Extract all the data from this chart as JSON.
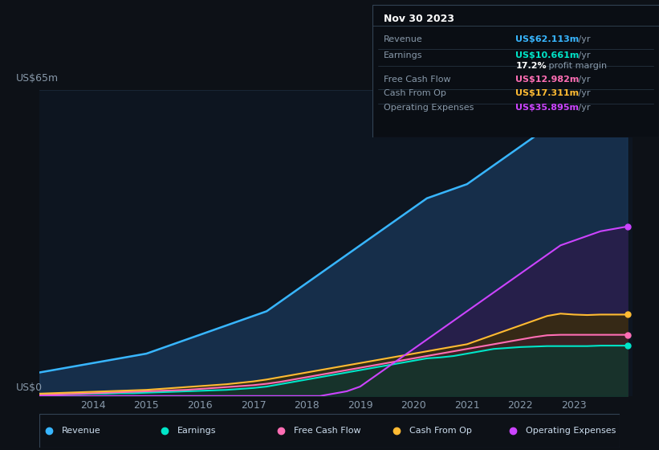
{
  "background_color": "#0d1117",
  "chart_bg_color": "#0d1520",
  "title_label": "US$65m",
  "zero_label": "US$0",
  "x_ticks": [
    "2014",
    "2015",
    "2016",
    "2017",
    "2018",
    "2019",
    "2020",
    "2021",
    "2022",
    "2023"
  ],
  "ylim": [
    0,
    65
  ],
  "grid_color": "#1e2d3d",
  "info_box": {
    "title": "Nov 30 2023",
    "rows": [
      {
        "label": "Revenue",
        "value": "US$62.113m",
        "suffix": " /yr",
        "color": "#38b6ff"
      },
      {
        "label": "Earnings",
        "value": "US$10.661m",
        "suffix": " /yr",
        "color": "#00e5c8"
      },
      {
        "label": "",
        "value": "17.2%",
        "suffix": " profit margin",
        "color": "#ffffff"
      },
      {
        "label": "Free Cash Flow",
        "value": "US$12.982m",
        "suffix": " /yr",
        "color": "#ff6eb4"
      },
      {
        "label": "Cash From Op",
        "value": "US$17.311m",
        "suffix": " /yr",
        "color": "#ffbb33"
      },
      {
        "label": "Operating Expenses",
        "value": "US$35.895m",
        "suffix": " /yr",
        "color": "#cc44ff"
      }
    ]
  },
  "legend": [
    {
      "label": "Revenue",
      "color": "#38b6ff"
    },
    {
      "label": "Earnings",
      "color": "#00e5c8"
    },
    {
      "label": "Free Cash Flow",
      "color": "#ff6eb4"
    },
    {
      "label": "Cash From Op",
      "color": "#ffbb33"
    },
    {
      "label": "Operating Expenses",
      "color": "#cc44ff"
    }
  ],
  "series_colors": {
    "revenue": "#38b6ff",
    "earnings": "#00e5c8",
    "free_cash": "#ff6eb4",
    "cash_from_op": "#ffbb33",
    "op_expenses": "#cc44ff"
  },
  "fill_colors": {
    "revenue": "#1a3a5c",
    "earnings": "#0a3a30",
    "free_cash": "#3d1a2e",
    "cash_from_op": "#3d2e00",
    "op_expenses": "#2e1a4a"
  }
}
